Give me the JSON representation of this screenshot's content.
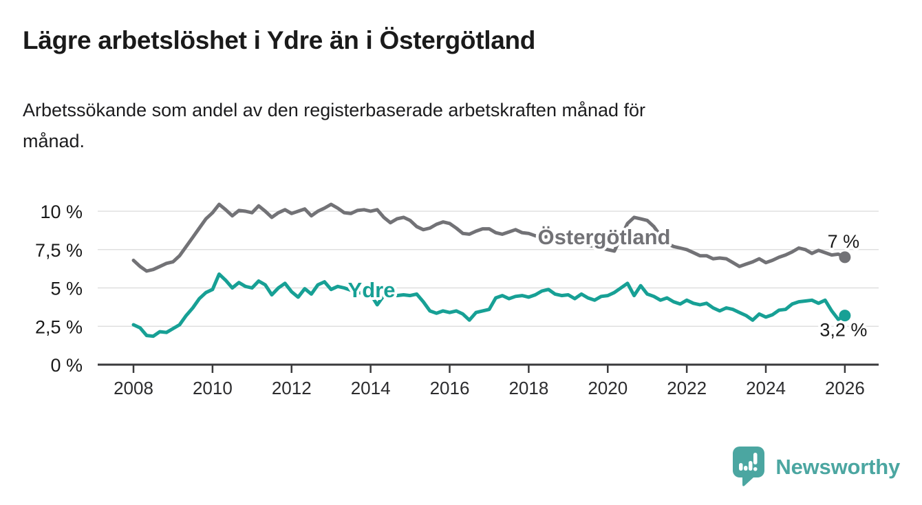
{
  "header": {
    "title": "Lägre arbetslöshet i Ydre än i Östergötland",
    "subtitle": "Arbetssökande som andel av den registerbaserade arbetskraften månad för månad.",
    "subtitle_lines": [
      "Arbetssökande som andel av den registerbaserade arbetskraften månad för",
      "månad."
    ]
  },
  "chart_data": {
    "type": "line",
    "x_unit": "year",
    "x_start": 2008,
    "x_end": 2026,
    "points_per_year": 6,
    "ylim": [
      0,
      10.9
    ],
    "grid": true,
    "legend_position": "inline-labels",
    "yticks": [
      {
        "value": 10,
        "label": "10 %"
      },
      {
        "value": 7.5,
        "label": "7,5 %"
      },
      {
        "value": 5,
        "label": "5 %"
      },
      {
        "value": 2.5,
        "label": "2,5 %"
      },
      {
        "value": 0,
        "label": "0 %"
      }
    ],
    "xticks": [
      {
        "value": 2008,
        "label": "2008"
      },
      {
        "value": 2010,
        "label": "2010"
      },
      {
        "value": 2012,
        "label": "2012"
      },
      {
        "value": 2014,
        "label": "2014"
      },
      {
        "value": 2016,
        "label": "2016"
      },
      {
        "value": 2018,
        "label": "2018"
      },
      {
        "value": 2020,
        "label": "2020"
      },
      {
        "value": 2022,
        "label": "2022"
      },
      {
        "value": 2024,
        "label": "2024"
      },
      {
        "value": 2026,
        "label": "2026"
      }
    ],
    "series": [
      {
        "name": "Östergötland",
        "color": "#727276",
        "end_label": "7 %",
        "end_value": 7.0,
        "values": [
          6.8,
          6.4,
          6.1,
          6.2,
          6.4,
          6.6,
          6.7,
          7.1,
          7.7,
          8.3,
          8.9,
          9.5,
          9.9,
          10.45,
          10.1,
          9.7,
          10.05,
          10.0,
          9.9,
          10.35,
          10.0,
          9.6,
          9.9,
          10.1,
          9.85,
          10.0,
          10.15,
          9.7,
          10.0,
          10.2,
          10.45,
          10.2,
          9.9,
          9.85,
          10.05,
          10.1,
          10.0,
          10.1,
          9.6,
          9.25,
          9.5,
          9.6,
          9.4,
          9.0,
          8.8,
          8.9,
          9.15,
          9.3,
          9.2,
          8.9,
          8.55,
          8.5,
          8.7,
          8.85,
          8.85,
          8.6,
          8.5,
          8.65,
          8.8,
          8.6,
          8.55,
          8.4,
          8.3,
          8.35,
          8.3,
          8.2,
          8.1,
          8.0,
          7.9,
          7.8,
          7.7,
          7.6,
          7.5,
          7.4,
          8.3,
          9.2,
          9.6,
          9.5,
          9.4,
          9.0,
          8.4,
          7.9,
          7.7,
          7.6,
          7.5,
          7.3,
          7.1,
          7.1,
          6.9,
          6.95,
          6.9,
          6.65,
          6.4,
          6.55,
          6.7,
          6.9,
          6.65,
          6.8,
          7.0,
          7.15,
          7.35,
          7.6,
          7.5,
          7.25,
          7.45,
          7.3,
          7.15,
          7.2,
          7.0
        ]
      },
      {
        "name": "Ydre",
        "color": "#17a095",
        "end_label": "3,2 %",
        "end_value": 3.2,
        "values": [
          2.6,
          2.4,
          1.9,
          1.85,
          2.15,
          2.1,
          2.35,
          2.6,
          3.2,
          3.7,
          4.3,
          4.7,
          4.9,
          5.9,
          5.5,
          5.0,
          5.35,
          5.1,
          5.0,
          5.45,
          5.2,
          4.55,
          5.0,
          5.3,
          4.75,
          4.4,
          4.95,
          4.6,
          5.2,
          5.4,
          4.9,
          5.1,
          5.0,
          4.85,
          4.7,
          4.65,
          4.6,
          3.9,
          4.5,
          4.6,
          4.5,
          4.55,
          4.5,
          4.6,
          4.1,
          3.5,
          3.35,
          3.5,
          3.4,
          3.5,
          3.3,
          2.9,
          3.4,
          3.5,
          3.6,
          4.35,
          4.5,
          4.3,
          4.45,
          4.5,
          4.4,
          4.55,
          4.8,
          4.9,
          4.6,
          4.5,
          4.55,
          4.3,
          4.6,
          4.35,
          4.2,
          4.45,
          4.5,
          4.7,
          5.0,
          5.3,
          4.5,
          5.15,
          4.6,
          4.45,
          4.2,
          4.35,
          4.1,
          3.95,
          4.2,
          4.0,
          3.9,
          4.0,
          3.7,
          3.5,
          3.7,
          3.6,
          3.4,
          3.2,
          2.9,
          3.3,
          3.1,
          3.25,
          3.55,
          3.6,
          3.95,
          4.1,
          4.15,
          4.2,
          4.0,
          4.2,
          3.5,
          2.95,
          3.2
        ]
      }
    ]
  },
  "footer": {
    "brand": "Newsworthy",
    "brand_color": "#4ba6a1"
  },
  "colors": {
    "axis": "#3a3a3c",
    "grid": "#dadada",
    "text": "#1a1a1a",
    "tick_text": "#2c2c2e"
  }
}
